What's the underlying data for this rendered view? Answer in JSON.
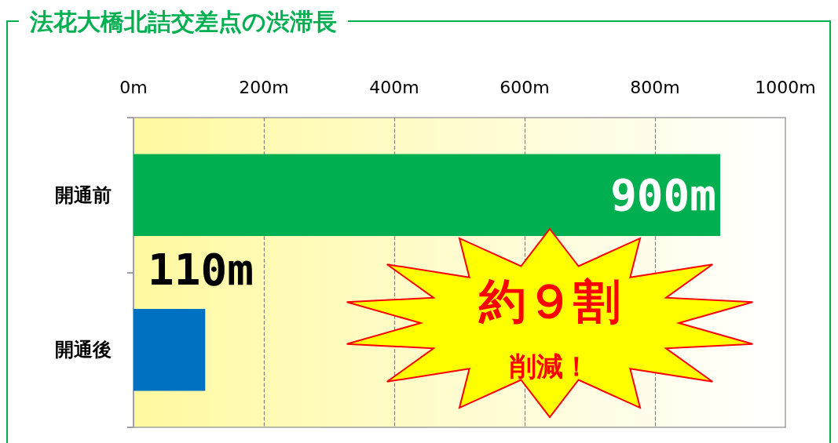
{
  "chart_data": {
    "type": "bar",
    "orientation": "horizontal",
    "title": "法花大橋北詰交差点の渋滞長",
    "categories": [
      "開通前",
      "開通後"
    ],
    "values": [
      900,
      110
    ],
    "colors": [
      "#00b050",
      "#0070c0"
    ],
    "value_labels": [
      "900m",
      "110m"
    ],
    "xlim": [
      0,
      1000
    ],
    "xticks": [
      {
        "value": 0,
        "label": "0m"
      },
      {
        "value": 200,
        "label": "200m"
      },
      {
        "value": 400,
        "label": "400m"
      },
      {
        "value": 600,
        "label": "600m"
      },
      {
        "value": 800,
        "label": "800m"
      },
      {
        "value": 1000,
        "label": "1000m"
      }
    ],
    "grid": "x",
    "annotations": [
      "約９割",
      "削減！"
    ]
  }
}
